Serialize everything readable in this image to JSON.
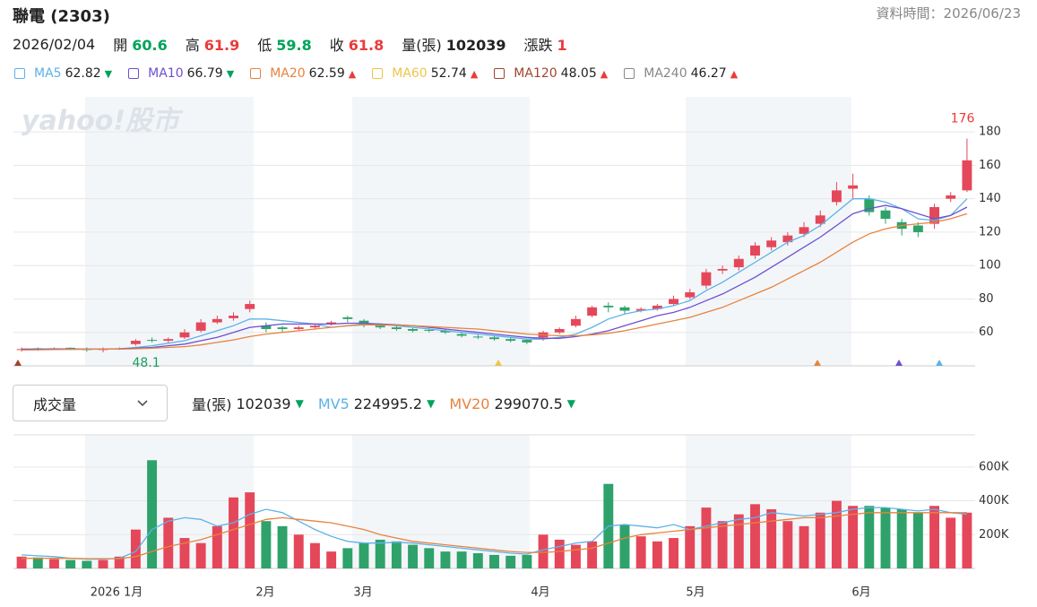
{
  "header": {
    "title": "聯電 (2303)",
    "data_time": "資料時間：2026/06/23",
    "date": "2026/02/04",
    "quote": [
      {
        "label": "開",
        "value": 60.6,
        "color": "#00a35a"
      },
      {
        "label": "高",
        "value": 61.9,
        "color": "#eb3b3b"
      },
      {
        "label": "低",
        "value": 59.8,
        "color": "#00a35a"
      },
      {
        "label": "收",
        "value": 61.8,
        "color": "#eb3b3b"
      },
      {
        "label": "量(張)",
        "value": 102039,
        "color": "#222222"
      },
      {
        "label": "漲跌",
        "value": 1,
        "color": "#eb3b3b"
      }
    ]
  },
  "ma_legend": [
    {
      "name": "MA5",
      "value": 62.82,
      "trend": "▼",
      "color": "#5eb1ea",
      "trend_color": "#00a35a"
    },
    {
      "name": "MA10",
      "value": 66.79,
      "trend": "▼",
      "color": "#6e4fcf",
      "trend_color": "#00a35a"
    },
    {
      "name": "MA20",
      "value": 62.59,
      "trend": "▲",
      "color": "#e7833e",
      "trend_color": "#eb3b3b"
    },
    {
      "name": "MA60",
      "value": 52.74,
      "trend": "▲",
      "color": "#f0c44b",
      "trend_color": "#eb3b3b"
    },
    {
      "name": "MA120",
      "value": 48.05,
      "trend": "▲",
      "color": "#a0442f",
      "trend_color": "#eb3b3b"
    },
    {
      "name": "MA240",
      "value": 46.27,
      "trend": "▲",
      "color": "#888888",
      "trend_color": "#eb3b3b"
    }
  ],
  "volume_legend": {
    "selector": "成交量",
    "items": [
      {
        "name": "量(張)",
        "value": 102039,
        "trend": "▼",
        "color": "#222222",
        "trend_color": "#00a35a"
      },
      {
        "name": "MV5",
        "value": 224995.2,
        "trend": "▼",
        "color": "#5eb1ea",
        "trend_color": "#00a35a"
      },
      {
        "name": "MV20",
        "value": 299070.5,
        "trend": "▼",
        "color": "#e7833e",
        "trend_color": "#00a35a"
      }
    ]
  },
  "chart_data": [
    {
      "type": "candlestick",
      "watermark": "yahoo!股市",
      "up_color": "#e5475a",
      "down_color": "#2ea26a",
      "open": [
        49.5,
        50.5,
        50,
        50.8,
        50,
        49.5,
        50,
        53,
        55.5,
        55,
        57,
        61,
        66,
        68.5,
        74,
        64,
        63,
        62,
        63,
        65,
        69,
        67,
        64,
        63,
        62,
        61.5,
        61,
        59,
        57.5,
        57,
        56,
        55.5,
        57,
        60,
        64,
        70,
        76,
        75,
        73,
        74,
        77,
        81,
        88,
        97,
        99,
        106,
        111,
        114,
        119,
        125,
        138,
        146,
        140,
        133,
        126,
        124,
        125,
        140,
        145
      ],
      "close": [
        50,
        50,
        50.5,
        50,
        49.5,
        50,
        50.5,
        55,
        55,
        56,
        60,
        66,
        68,
        70,
        77,
        62,
        62,
        63,
        64,
        66,
        68,
        65,
        63,
        62,
        61,
        61,
        60,
        58,
        57,
        56,
        55,
        54,
        60,
        62,
        68,
        75,
        75,
        73,
        74,
        76,
        80,
        84,
        96,
        98,
        104,
        112,
        115,
        118,
        123,
        130,
        145,
        148,
        132,
        128,
        122,
        120,
        135,
        142,
        163
      ],
      "high": [
        51,
        51,
        51,
        51,
        51,
        51,
        51,
        56,
        57,
        57,
        62,
        68,
        70,
        72,
        79,
        66,
        64,
        64,
        65,
        67,
        70,
        68,
        65,
        64,
        63,
        62.5,
        62,
        60,
        58.5,
        58,
        57,
        56,
        61,
        63,
        70,
        76,
        78,
        76,
        75,
        77,
        82,
        86,
        98,
        100,
        106,
        114,
        117,
        120,
        126,
        133,
        150,
        155,
        142,
        135,
        128,
        126,
        137,
        144,
        176
      ],
      "low": [
        48.5,
        49,
        49.5,
        49.5,
        48.5,
        48.1,
        49.5,
        52,
        54,
        54,
        56,
        60,
        65,
        67,
        72,
        60,
        60,
        61,
        62,
        64,
        66,
        63,
        62,
        61,
        60,
        60,
        59,
        57,
        56,
        55,
        54,
        53,
        55,
        59,
        63,
        69,
        72,
        71,
        72,
        73,
        76,
        80,
        86,
        95,
        97,
        104,
        109,
        112,
        117,
        123,
        136,
        140,
        130,
        125,
        118,
        117,
        122,
        138,
        144
      ],
      "series": [
        {
          "name": "MA5",
          "color": "#5eb1ea",
          "values": [
            50,
            50,
            50.2,
            50.1,
            50,
            50,
            50.2,
            51,
            52,
            53.5,
            55,
            58,
            61,
            64,
            68,
            68,
            67,
            66,
            65,
            63,
            64,
            65,
            65,
            64,
            63,
            62,
            61,
            60,
            59,
            58,
            57,
            56,
            56,
            57,
            59,
            63,
            68,
            71,
            73,
            74,
            76,
            79,
            85,
            90,
            96,
            102,
            108,
            114,
            118,
            124,
            132,
            140,
            140,
            138,
            134,
            128,
            127,
            130,
            140
          ]
        },
        {
          "name": "MA10",
          "color": "#6e4fcf",
          "values": [
            50,
            50,
            50,
            50,
            50,
            50,
            50.1,
            50.5,
            51,
            52,
            53,
            55,
            57,
            60,
            63,
            64,
            65,
            65,
            65,
            65,
            65.5,
            65.5,
            65,
            64.5,
            64,
            63,
            62,
            61,
            60,
            59,
            58,
            57,
            56.5,
            56.5,
            57.5,
            59,
            61,
            64,
            67,
            70,
            72,
            75,
            79,
            83,
            88,
            93,
            99,
            105,
            111,
            117,
            124,
            131,
            134,
            136,
            134,
            131,
            128,
            130,
            135
          ]
        },
        {
          "name": "MA20",
          "color": "#e7833e",
          "values": [
            49.5,
            49.6,
            49.7,
            49.8,
            49.9,
            50,
            50,
            50.2,
            50.5,
            51,
            51.5,
            52.5,
            54,
            55.5,
            57.5,
            59,
            60,
            61,
            62,
            63,
            64,
            64.5,
            64.5,
            64.3,
            64,
            63.5,
            63,
            62.5,
            62,
            61,
            60,
            59,
            58.5,
            58,
            58,
            58.5,
            59.5,
            61,
            63,
            65,
            67,
            69,
            72,
            75,
            79,
            83,
            87,
            92,
            97,
            102,
            108,
            114,
            119,
            122,
            124,
            125,
            126,
            128,
            131
          ]
        }
      ],
      "max_label": 176,
      "min_label": 48.1,
      "ylim": [
        40,
        201
      ],
      "yticks": [
        60,
        80,
        100,
        120,
        140,
        160,
        180
      ],
      "grid": true
    },
    {
      "type": "bar",
      "x_labels": [
        "2026 1月",
        "2月",
        "3月",
        "4月",
        "5月",
        "6月"
      ],
      "values": [
        70,
        65,
        55,
        50,
        45,
        50,
        70,
        230,
        640,
        300,
        180,
        150,
        250,
        420,
        450,
        280,
        250,
        200,
        150,
        100,
        120,
        150,
        170,
        160,
        140,
        120,
        100,
        100,
        90,
        80,
        75,
        80,
        200,
        170,
        140,
        160,
        500,
        260,
        190,
        160,
        180,
        250,
        360,
        280,
        320,
        380,
        350,
        280,
        250,
        330,
        400,
        370,
        370,
        360,
        350,
        330,
        370,
        300,
        330
      ],
      "series": [
        {
          "name": "MV5",
          "color": "#5eb1ea",
          "values": [
            80,
            75,
            70,
            60,
            55,
            55,
            60,
            100,
            230,
            280,
            300,
            290,
            250,
            270,
            320,
            350,
            330,
            280,
            230,
            190,
            160,
            150,
            150,
            155,
            150,
            140,
            130,
            120,
            110,
            100,
            90,
            85,
            110,
            130,
            150,
            160,
            250,
            260,
            250,
            240,
            260,
            230,
            250,
            270,
            290,
            300,
            330,
            320,
            310,
            320,
            330,
            350,
            360,
            360,
            350,
            340,
            350,
            330,
            320
          ]
        },
        {
          "name": "MV20",
          "color": "#e7833e",
          "values": [
            60,
            60,
            60,
            60,
            58,
            58,
            58,
            70,
            100,
            130,
            150,
            170,
            200,
            230,
            260,
            290,
            300,
            290,
            280,
            270,
            250,
            230,
            200,
            180,
            160,
            150,
            140,
            130,
            120,
            110,
            100,
            95,
            95,
            100,
            110,
            120,
            150,
            180,
            200,
            210,
            220,
            230,
            240,
            250,
            260,
            270,
            280,
            290,
            300,
            300,
            310,
            320,
            330,
            330,
            330,
            330,
            330,
            330,
            330
          ]
        }
      ],
      "ylim": [
        0,
        790
      ],
      "yticks": [
        {
          "value": 200,
          "label": "200K"
        },
        {
          "value": 400,
          "label": "400K"
        },
        {
          "value": 600,
          "label": "600K"
        }
      ],
      "grid": true
    }
  ]
}
